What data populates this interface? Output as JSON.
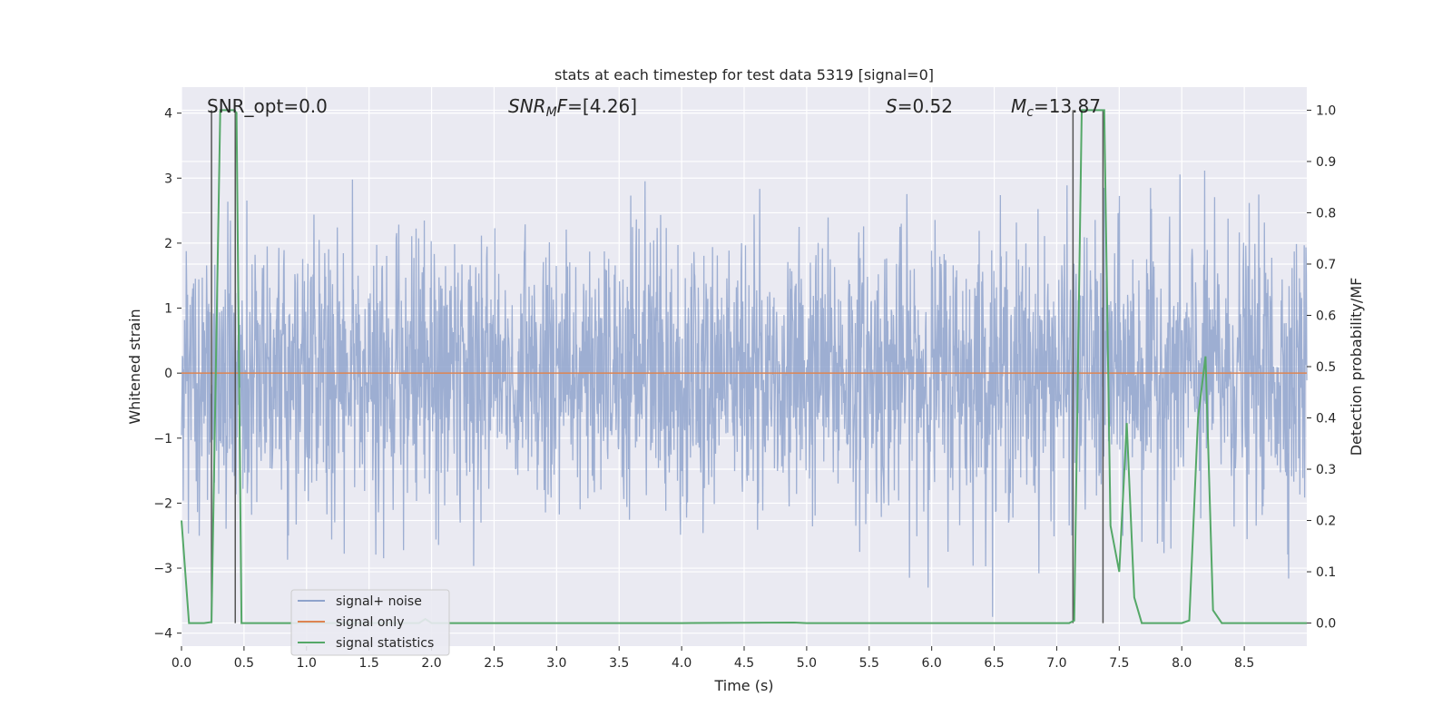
{
  "chart_data": {
    "type": "line",
    "title": "stats at each timestep for test data 5319 [signal=0]",
    "xlabel": "Time (s)",
    "ylabel": "Whitened strain",
    "y2label": "Detection probability/MF",
    "xlim": [
      0,
      9.0
    ],
    "ylim": [
      -4.2,
      4.4
    ],
    "y2lim": [
      -0.045,
      1.045
    ],
    "x_ticks": [
      "0.0",
      "0.5",
      "1.0",
      "1.5",
      "2.0",
      "2.5",
      "3.0",
      "3.5",
      "4.0",
      "4.5",
      "5.0",
      "5.5",
      "6.0",
      "6.5",
      "7.0",
      "7.5",
      "8.0",
      "8.5"
    ],
    "y_ticks": [
      "4",
      "3",
      "2",
      "1",
      "0",
      "−1",
      "−2",
      "−3",
      "−4"
    ],
    "y2_ticks": [
      "1.0",
      "0.9",
      "0.8",
      "0.7",
      "0.6",
      "0.5",
      "0.4",
      "0.3",
      "0.2",
      "0.1",
      "0.0"
    ],
    "grid": true,
    "legend_position": "lower-left",
    "annotations": {
      "snr_opt": "SNR_opt=0.0",
      "snr_mf_sym": "SNR",
      "snr_mf_sub": "M",
      "snr_mf_f": "F",
      "snr_mf_val": "=[4.26]",
      "s_sym": "S",
      "s_val": "=0.52",
      "mc_sym": "M",
      "mc_sub": "c",
      "mc_val": "=13.87"
    },
    "series": [
      {
        "name": "signal+ noise",
        "color": "#8fa3cc",
        "axis": "left",
        "description_shape": "whitened noise, std≈1, spikes to about ±3.6 across 0–9 s"
      },
      {
        "name": "signal only",
        "color": "#dd8452",
        "axis": "left",
        "x": [
          0,
          9.0
        ],
        "y": [
          0,
          0
        ]
      },
      {
        "name": "signal statistics",
        "color": "#55a868",
        "axis": "right",
        "x": [
          0.0,
          0.06,
          0.18,
          0.24,
          0.31,
          0.42,
          0.44,
          0.48,
          0.9,
          1.9,
          1.95,
          2.0,
          2.1,
          4.0,
          4.9,
          5.0,
          6.0,
          7.1,
          7.14,
          7.2,
          7.38,
          7.43,
          7.5,
          7.56,
          7.62,
          7.68,
          7.8,
          8.0,
          8.06,
          8.13,
          8.19,
          8.25,
          8.32,
          9.0
        ],
        "y": [
          0.2,
          0.0,
          0.0,
          0.002,
          1.0,
          1.0,
          0.995,
          0.0,
          0.0,
          0.0,
          0.008,
          0.0,
          0.0,
          0.0,
          0.001,
          0.0,
          0.0,
          0.0,
          0.005,
          1.0,
          1.0,
          0.19,
          0.1,
          0.39,
          0.05,
          0.0,
          0.0,
          0.0,
          0.005,
          0.4,
          0.52,
          0.025,
          0.0,
          0.0
        ]
      }
    ],
    "vertical_markers_s": [
      0.24,
      0.43,
      7.13,
      7.37
    ]
  }
}
